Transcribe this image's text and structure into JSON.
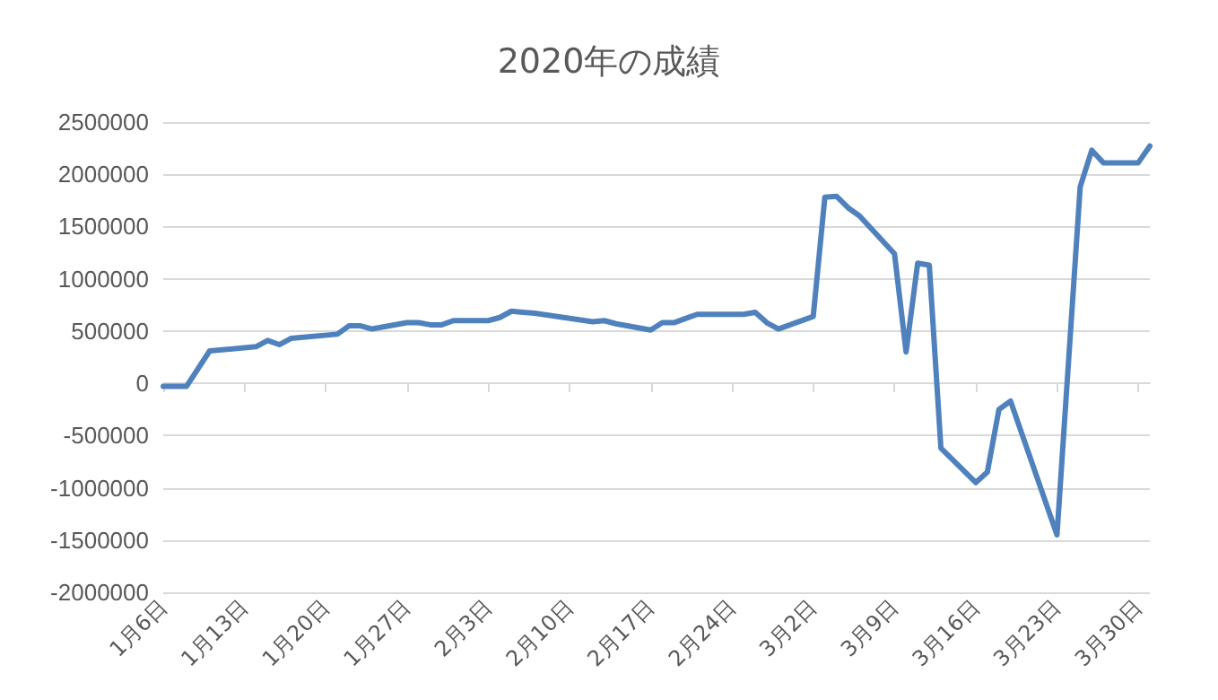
{
  "chart_data": {
    "type": "line",
    "title": "2020年の成績",
    "x": [
      "2020-01-06",
      "2020-01-08",
      "2020-01-10",
      "2020-01-14",
      "2020-01-15",
      "2020-01-16",
      "2020-01-17",
      "2020-01-21",
      "2020-01-22",
      "2020-01-23",
      "2020-01-24",
      "2020-01-27",
      "2020-01-28",
      "2020-01-29",
      "2020-01-30",
      "2020-01-31",
      "2020-02-03",
      "2020-02-04",
      "2020-02-05",
      "2020-02-06",
      "2020-02-07",
      "2020-02-12",
      "2020-02-13",
      "2020-02-14",
      "2020-02-17",
      "2020-02-18",
      "2020-02-19",
      "2020-02-21",
      "2020-02-25",
      "2020-02-26",
      "2020-02-27",
      "2020-02-28",
      "2020-03-02",
      "2020-03-03",
      "2020-03-04",
      "2020-03-05",
      "2020-03-06",
      "2020-03-09",
      "2020-03-10",
      "2020-03-11",
      "2020-03-12",
      "2020-03-13",
      "2020-03-16",
      "2020-03-17",
      "2020-03-18",
      "2020-03-19",
      "2020-03-23",
      "2020-03-25",
      "2020-03-26",
      "2020-03-27",
      "2020-03-30",
      "2020-03-31"
    ],
    "series": [
      {
        "color": "#4f81bd",
        "values": [
          -30000,
          -30000,
          310000,
          350000,
          410000,
          370000,
          430000,
          470000,
          550000,
          550000,
          520000,
          580000,
          580000,
          560000,
          560000,
          600000,
          600000,
          630000,
          690000,
          680000,
          670000,
          590000,
          600000,
          570000,
          510000,
          580000,
          580000,
          660000,
          660000,
          680000,
          580000,
          520000,
          640000,
          1780000,
          1790000,
          1680000,
          1600000,
          1240000,
          300000,
          1150000,
          1130000,
          -620000,
          -950000,
          -850000,
          -250000,
          -170000,
          -1450000,
          1880000,
          2230000,
          2110000,
          2110000,
          2270000
        ]
      }
    ],
    "xlim": [
      "2020-01-06",
      "2020-03-31"
    ],
    "xticks": [
      {
        "value": "2020-01-06",
        "label": "1月6日"
      },
      {
        "value": "2020-01-13",
        "label": "1月13日"
      },
      {
        "value": "2020-01-20",
        "label": "1月20日"
      },
      {
        "value": "2020-01-27",
        "label": "1月27日"
      },
      {
        "value": "2020-02-03",
        "label": "2月3日"
      },
      {
        "value": "2020-02-10",
        "label": "2月10日"
      },
      {
        "value": "2020-02-17",
        "label": "2月17日"
      },
      {
        "value": "2020-02-24",
        "label": "2月24日"
      },
      {
        "value": "2020-03-02",
        "label": "3月2日"
      },
      {
        "value": "2020-03-09",
        "label": "3月9日"
      },
      {
        "value": "2020-03-16",
        "label": "3月16日"
      },
      {
        "value": "2020-03-23",
        "label": "3月23日"
      },
      {
        "value": "2020-03-30",
        "label": "3月30日"
      }
    ],
    "ylim": [
      -2000000,
      2500000
    ],
    "yticks": [
      -2000000,
      -1500000,
      -1000000,
      -500000,
      0,
      500000,
      1000000,
      1500000,
      2000000,
      2500000
    ],
    "grid": "y",
    "marker": "none",
    "line_style": "solid"
  }
}
